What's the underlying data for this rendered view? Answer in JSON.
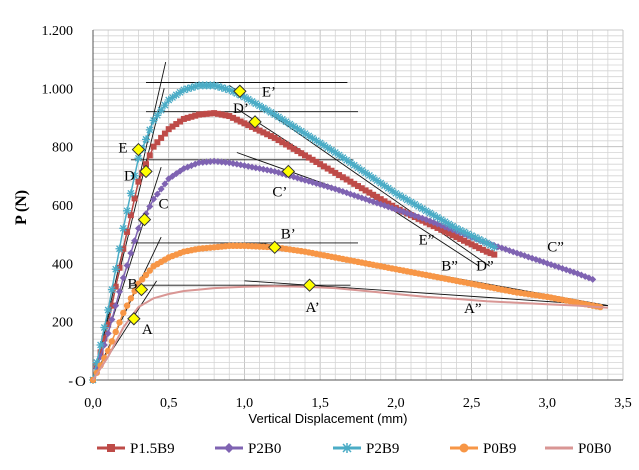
{
  "chart_data": {
    "type": "line",
    "title": "",
    "xlabel": "Vertical Displacement  (mm)",
    "ylabel": "P (N)",
    "xlim": [
      0,
      3.5
    ],
    "ylim": [
      0,
      1200
    ],
    "x_ticks": [
      "0,0",
      "0,5",
      "1,0",
      "1,5",
      "2,0",
      "2,5",
      "3,0",
      "3,5"
    ],
    "y_ticks": [
      "-",
      "200",
      "400",
      "600",
      "800",
      "1.000",
      "1.200"
    ],
    "grid": true,
    "legend_position": "bottom",
    "series": [
      {
        "name": "P1.5B9",
        "color": "#be4b48",
        "marker": "square",
        "points": [
          [
            0,
            0
          ],
          [
            0.1,
            190
          ],
          [
            0.2,
            450
          ],
          [
            0.3,
            680
          ],
          [
            0.4,
            800
          ],
          [
            0.5,
            860
          ],
          [
            0.6,
            895
          ],
          [
            0.7,
            910
          ],
          [
            0.8,
            915
          ],
          [
            0.9,
            905
          ],
          [
            1.0,
            880
          ],
          [
            1.2,
            830
          ],
          [
            1.4,
            770
          ],
          [
            1.6,
            710
          ],
          [
            1.8,
            650
          ],
          [
            2.0,
            590
          ],
          [
            2.2,
            540
          ],
          [
            2.4,
            490
          ],
          [
            2.6,
            440
          ],
          [
            2.65,
            430
          ]
        ]
      },
      {
        "name": "P2B0",
        "color": "#7f63b2",
        "marker": "diamond",
        "points": [
          [
            0,
            0
          ],
          [
            0.1,
            160
          ],
          [
            0.2,
            350
          ],
          [
            0.3,
            520
          ],
          [
            0.4,
            620
          ],
          [
            0.5,
            690
          ],
          [
            0.6,
            725
          ],
          [
            0.7,
            745
          ],
          [
            0.8,
            750
          ],
          [
            0.9,
            745
          ],
          [
            1.0,
            735
          ],
          [
            1.2,
            715
          ],
          [
            1.4,
            685
          ],
          [
            1.6,
            655
          ],
          [
            1.8,
            620
          ],
          [
            2.0,
            585
          ],
          [
            2.2,
            550
          ],
          [
            2.4,
            510
          ],
          [
            2.6,
            470
          ],
          [
            2.8,
            435
          ],
          [
            3.0,
            400
          ],
          [
            3.2,
            365
          ],
          [
            3.3,
            345
          ]
        ]
      },
      {
        "name": "P2B9",
        "color": "#4bacc6",
        "marker": "star",
        "points": [
          [
            0,
            0
          ],
          [
            0.1,
            240
          ],
          [
            0.2,
            520
          ],
          [
            0.3,
            760
          ],
          [
            0.4,
            890
          ],
          [
            0.5,
            960
          ],
          [
            0.6,
            995
          ],
          [
            0.7,
            1010
          ],
          [
            0.8,
            1010
          ],
          [
            0.9,
            995
          ],
          [
            1.0,
            970
          ],
          [
            1.2,
            910
          ],
          [
            1.4,
            845
          ],
          [
            1.6,
            780
          ],
          [
            1.8,
            710
          ],
          [
            2.0,
            640
          ],
          [
            2.2,
            580
          ],
          [
            2.4,
            520
          ],
          [
            2.6,
            470
          ],
          [
            2.65,
            455
          ]
        ]
      },
      {
        "name": "P0B9",
        "color": "#f79646",
        "marker": "circle",
        "points": [
          [
            0,
            0
          ],
          [
            0.1,
            100
          ],
          [
            0.2,
            230
          ],
          [
            0.3,
            330
          ],
          [
            0.4,
            390
          ],
          [
            0.5,
            420
          ],
          [
            0.6,
            440
          ],
          [
            0.7,
            450
          ],
          [
            0.8,
            455
          ],
          [
            0.9,
            460
          ],
          [
            1.0,
            460
          ],
          [
            1.2,
            455
          ],
          [
            1.4,
            440
          ],
          [
            1.6,
            420
          ],
          [
            1.8,
            400
          ],
          [
            2.0,
            380
          ],
          [
            2.2,
            360
          ],
          [
            2.4,
            340
          ],
          [
            2.6,
            320
          ],
          [
            2.8,
            300
          ],
          [
            3.0,
            285
          ],
          [
            3.2,
            265
          ],
          [
            3.35,
            250
          ]
        ]
      },
      {
        "name": "P0B0",
        "color": "#d99694",
        "marker": "none",
        "points": [
          [
            0,
            0
          ],
          [
            0.1,
            80
          ],
          [
            0.2,
            180
          ],
          [
            0.3,
            250
          ],
          [
            0.4,
            280
          ],
          [
            0.5,
            295
          ],
          [
            0.6,
            305
          ],
          [
            0.7,
            310
          ],
          [
            0.8,
            315
          ],
          [
            1.0,
            320
          ],
          [
            1.2,
            322
          ],
          [
            1.4,
            320
          ],
          [
            1.6,
            315
          ],
          [
            1.8,
            305
          ],
          [
            2.0,
            295
          ],
          [
            2.2,
            285
          ],
          [
            2.4,
            278
          ],
          [
            2.6,
            270
          ],
          [
            2.8,
            265
          ],
          [
            3.0,
            260
          ],
          [
            3.2,
            255
          ],
          [
            3.4,
            248
          ]
        ]
      }
    ],
    "key_points": [
      {
        "label": "A",
        "x": 0.27,
        "y": 210
      },
      {
        "label": "B",
        "x": 0.32,
        "y": 310
      },
      {
        "label": "C",
        "x": 0.34,
        "y": 550
      },
      {
        "label": "D",
        "x": 0.35,
        "y": 715
      },
      {
        "label": "E",
        "x": 0.3,
        "y": 790
      },
      {
        "label": "A’",
        "x": 1.43,
        "y": 325
      },
      {
        "label": "B’",
        "x": 1.2,
        "y": 455
      },
      {
        "label": "C’",
        "x": 1.29,
        "y": 715
      },
      {
        "label": "D’",
        "x": 1.07,
        "y": 885
      },
      {
        "label": "E’",
        "x": 0.97,
        "y": 990
      }
    ],
    "end_labels": [
      {
        "label": "A”",
        "x": 2.45,
        "y": 230
      },
      {
        "label": "B”",
        "x": 2.3,
        "y": 375
      },
      {
        "label": "C”",
        "x": 3.0,
        "y": 440
      },
      {
        "label": "D”",
        "x": 2.53,
        "y": 375
      },
      {
        "label": "E”",
        "x": 2.15,
        "y": 465
      }
    ],
    "origin_label": "O",
    "tangent_lines": [
      {
        "x1": 0.0,
        "y1": 0,
        "x2": 0.48,
        "y2": 1090
      },
      {
        "x1": 0.0,
        "y1": 0,
        "x2": 0.47,
        "y2": 1000
      },
      {
        "x1": 0.0,
        "y1": 0,
        "x2": 0.45,
        "y2": 730
      },
      {
        "x1": 0.0,
        "y1": 0,
        "x2": 0.45,
        "y2": 490
      },
      {
        "x1": 0.0,
        "y1": 0,
        "x2": 0.42,
        "y2": 340
      },
      {
        "x1": 0.35,
        "y1": 1020,
        "x2": 1.68,
        "y2": 1020
      },
      {
        "x1": 0.35,
        "y1": 920,
        "x2": 1.75,
        "y2": 920
      },
      {
        "x1": 0.25,
        "y1": 755,
        "x2": 1.72,
        "y2": 755
      },
      {
        "x1": 0.25,
        "y1": 470,
        "x2": 1.75,
        "y2": 470
      },
      {
        "x1": 0.25,
        "y1": 325,
        "x2": 1.7,
        "y2": 325
      },
      {
        "x1": 0.9,
        "y1": 1010,
        "x2": 2.62,
        "y2": 390
      },
      {
        "x1": 0.95,
        "y1": 930,
        "x2": 2.55,
        "y2": 390
      },
      {
        "x1": 0.95,
        "y1": 780,
        "x2": 3.3,
        "y2": 345
      },
      {
        "x1": 1.1,
        "y1": 470,
        "x2": 3.4,
        "y2": 255
      },
      {
        "x1": 1.0,
        "y1": 340,
        "x2": 3.4,
        "y2": 255
      }
    ]
  }
}
